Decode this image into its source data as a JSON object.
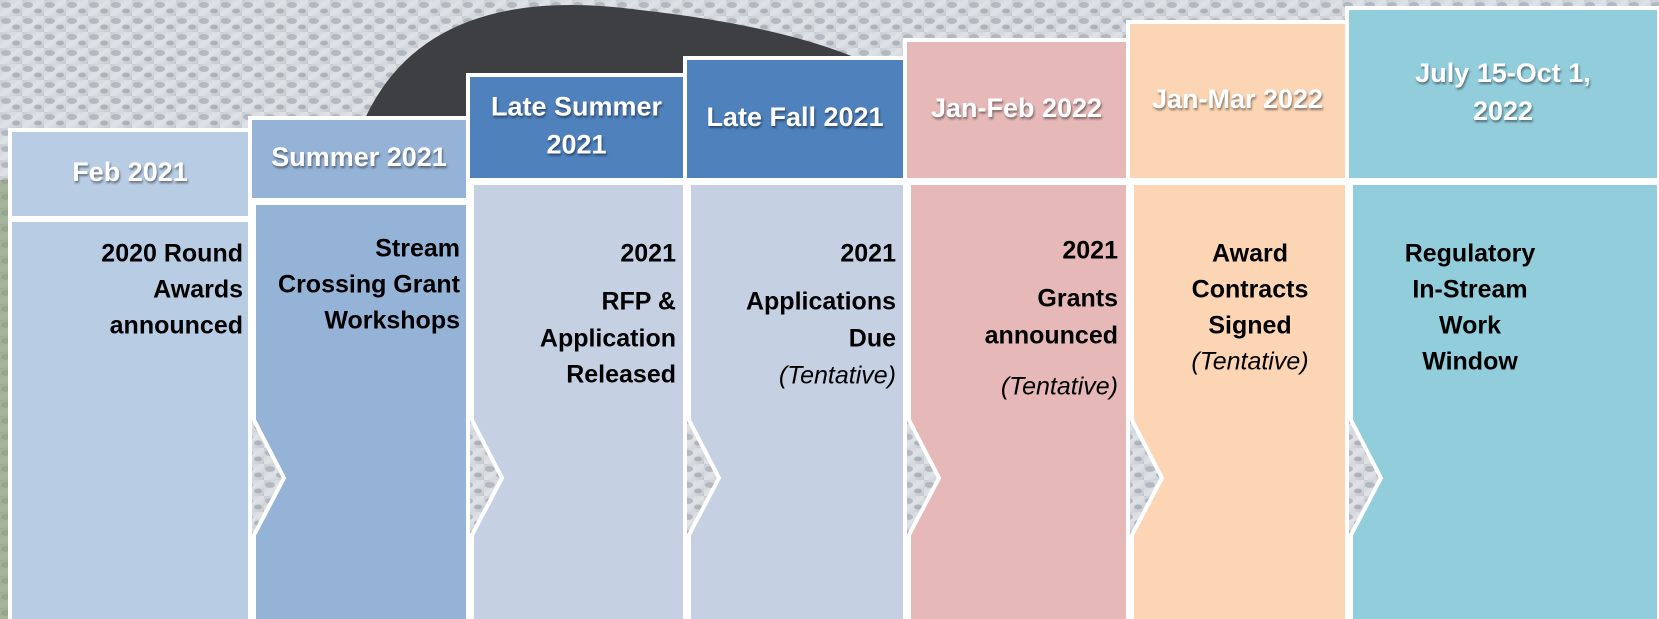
{
  "steps": [
    {
      "date": [
        "Feb 2021"
      ],
      "lines": [
        "2020 Round",
        "Awards",
        "announced"
      ]
    },
    {
      "date": [
        "Summer 2021"
      ],
      "lines": [
        "Stream",
        "Crossing Grant",
        "Workshops"
      ]
    },
    {
      "date": [
        "Late Summer",
        "2021"
      ],
      "lines": [
        "2021",
        "RFP &",
        "Application",
        "Released"
      ]
    },
    {
      "date": [
        "Late Fall 2021"
      ],
      "lines": [
        "2021",
        "Applications",
        "Due"
      ],
      "note": "(Tentative)"
    },
    {
      "date": [
        "Jan-Feb 2022"
      ],
      "lines": [
        "2021",
        "Grants",
        "announced"
      ],
      "note": "(Tentative)"
    },
    {
      "date": [
        "Jan-Mar 2022"
      ],
      "lines": [
        "Award",
        "Contracts",
        "Signed"
      ],
      "note": "(Tentative)"
    },
    {
      "date": [
        "July 15-Oct 1,",
        "2022"
      ],
      "lines": [
        "Regulatory",
        "In-Stream",
        "Work",
        "Window"
      ]
    }
  ]
}
